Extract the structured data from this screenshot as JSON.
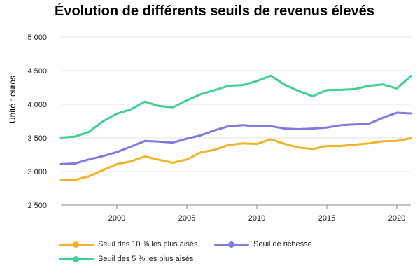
{
  "chart_data": {
    "type": "line",
    "title": "Évolution de différents seuils de revenus élevés",
    "ylabel": "Unité : euros",
    "xlabel": "",
    "ylim": [
      2500,
      5000
    ],
    "xlim": [
      1996,
      2021
    ],
    "yticks": [
      {
        "value": 2500,
        "label": "2 500"
      },
      {
        "value": 3000,
        "label": "3 000"
      },
      {
        "value": 3500,
        "label": "3 500"
      },
      {
        "value": 4000,
        "label": "4 000"
      },
      {
        "value": 4500,
        "label": "4 500"
      },
      {
        "value": 5000,
        "label": "5 000"
      }
    ],
    "xticks": [
      {
        "value": 2000,
        "label": "2000"
      },
      {
        "value": 2005,
        "label": "2005"
      },
      {
        "value": 2010,
        "label": "2010"
      },
      {
        "value": 2015,
        "label": "2015"
      },
      {
        "value": 2020,
        "label": "2020"
      }
    ],
    "grid": "horizontal",
    "legend_position": "bottom",
    "x": [
      1996,
      1997,
      1998,
      1999,
      2000,
      2001,
      2002,
      2003,
      2004,
      2005,
      2006,
      2007,
      2008,
      2009,
      2010,
      2011,
      2012,
      2013,
      2014,
      2015,
      2016,
      2017,
      2018,
      2019,
      2020,
      2021
    ],
    "series": [
      {
        "name": "Seuil des 10 % les plus aisés",
        "color": "#f5b127",
        "values": [
          2870,
          2875,
          2930,
          3020,
          3110,
          3150,
          3225,
          3175,
          3130,
          3180,
          3285,
          3325,
          3395,
          3420,
          3410,
          3480,
          3410,
          3355,
          3335,
          3380,
          3380,
          3400,
          3420,
          3450,
          3455,
          3495
        ]
      },
      {
        "name": "Seuil de richesse",
        "color": "#7b7be6",
        "values": [
          3110,
          3120,
          3180,
          3230,
          3290,
          3370,
          3455,
          3445,
          3430,
          3490,
          3540,
          3615,
          3675,
          3690,
          3675,
          3675,
          3640,
          3630,
          3640,
          3655,
          3690,
          3700,
          3710,
          3800,
          3875,
          3865
        ]
      },
      {
        "name": "Seuil des 5 % les plus aisés",
        "color": "#3dd18f",
        "values": [
          3505,
          3520,
          3590,
          3745,
          3860,
          3925,
          4040,
          3975,
          3955,
          4060,
          4150,
          4210,
          4275,
          4285,
          4345,
          4425,
          4290,
          4195,
          4120,
          4210,
          4215,
          4225,
          4275,
          4295,
          4235,
          4420
        ]
      }
    ]
  }
}
